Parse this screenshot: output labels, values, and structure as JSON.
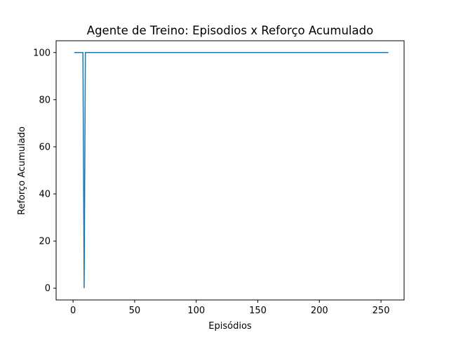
{
  "chart_data": {
    "type": "line",
    "title": "Agente de Treino: Episodios x Reforço Acumulado",
    "xlabel": "Episódios",
    "ylabel": "Reforço Acumulado",
    "xlim": [
      -13.75,
      268.75
    ],
    "ylim": [
      -5,
      105
    ],
    "xticks": [
      0,
      50,
      100,
      150,
      200,
      250
    ],
    "yticks": [
      0,
      20,
      40,
      60,
      80,
      100
    ],
    "grid": false,
    "series": [
      {
        "color": "#1f77b4",
        "x": [
          1,
          2,
          3,
          4,
          5,
          6,
          7,
          8,
          9,
          10,
          11,
          12,
          13,
          14,
          15,
          20,
          30,
          40,
          50,
          75,
          100,
          125,
          150,
          175,
          200,
          225,
          250,
          256
        ],
        "y": [
          100,
          100,
          100,
          100,
          100,
          100,
          100,
          100,
          0,
          100,
          100,
          100,
          100,
          100,
          100,
          100,
          100,
          100,
          100,
          100,
          100,
          100,
          100,
          100,
          100,
          100,
          100,
          100
        ]
      }
    ]
  }
}
